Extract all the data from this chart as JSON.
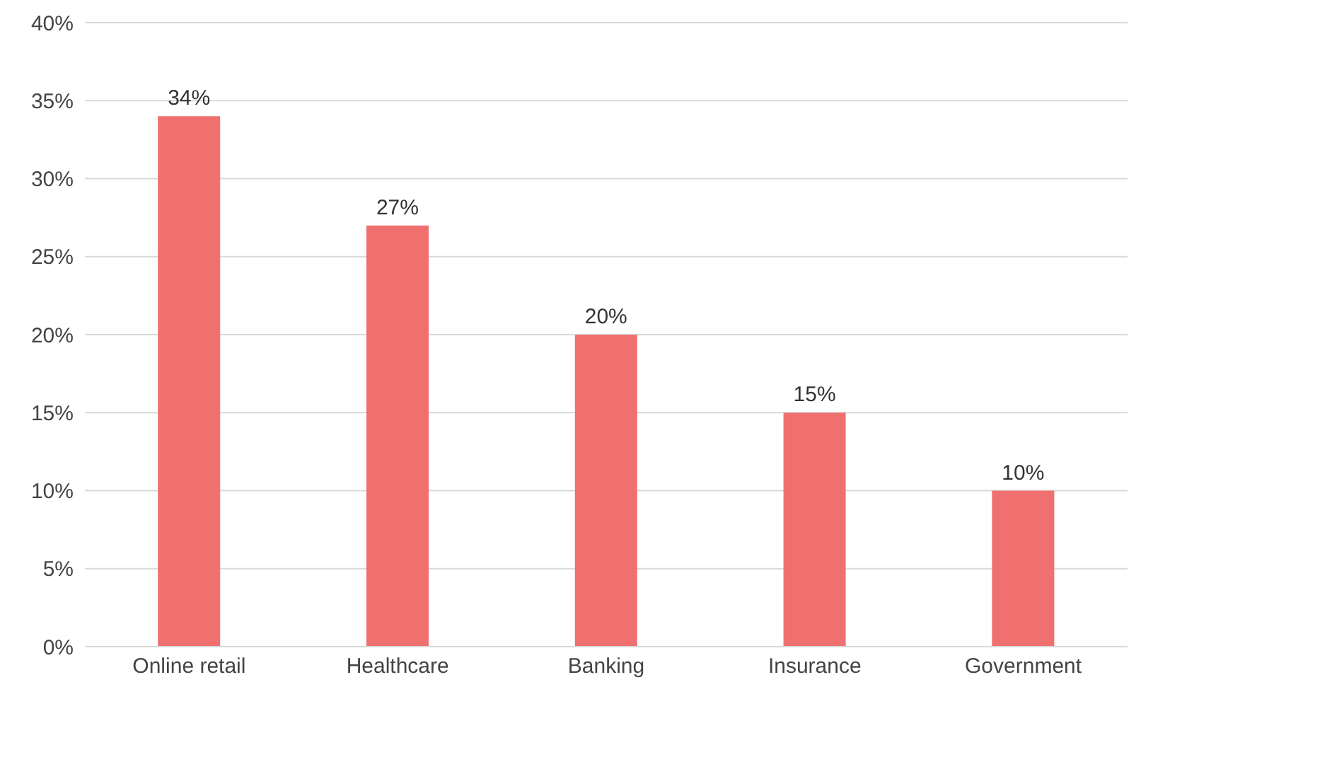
{
  "chart_data": {
    "type": "bar",
    "categories": [
      "Online retail",
      "Healthcare",
      "Banking",
      "Insurance",
      "Government"
    ],
    "values": [
      34,
      27,
      20,
      15,
      10
    ],
    "value_labels": [
      "34%",
      "27%",
      "20%",
      "15%",
      "10%"
    ],
    "color": "#f07070",
    "ylim": [
      0,
      40
    ],
    "yticks": [
      {
        "value": 0,
        "label": "0%"
      },
      {
        "value": 5,
        "label": "5%"
      },
      {
        "value": 10,
        "label": "10%"
      },
      {
        "value": 15,
        "label": "15%"
      },
      {
        "value": 20,
        "label": "20%"
      },
      {
        "value": 25,
        "label": "25%"
      },
      {
        "value": 30,
        "label": "30%"
      },
      {
        "value": 35,
        "label": "35%"
      },
      {
        "value": 40,
        "label": "40%"
      }
    ],
    "grid": "y"
  }
}
